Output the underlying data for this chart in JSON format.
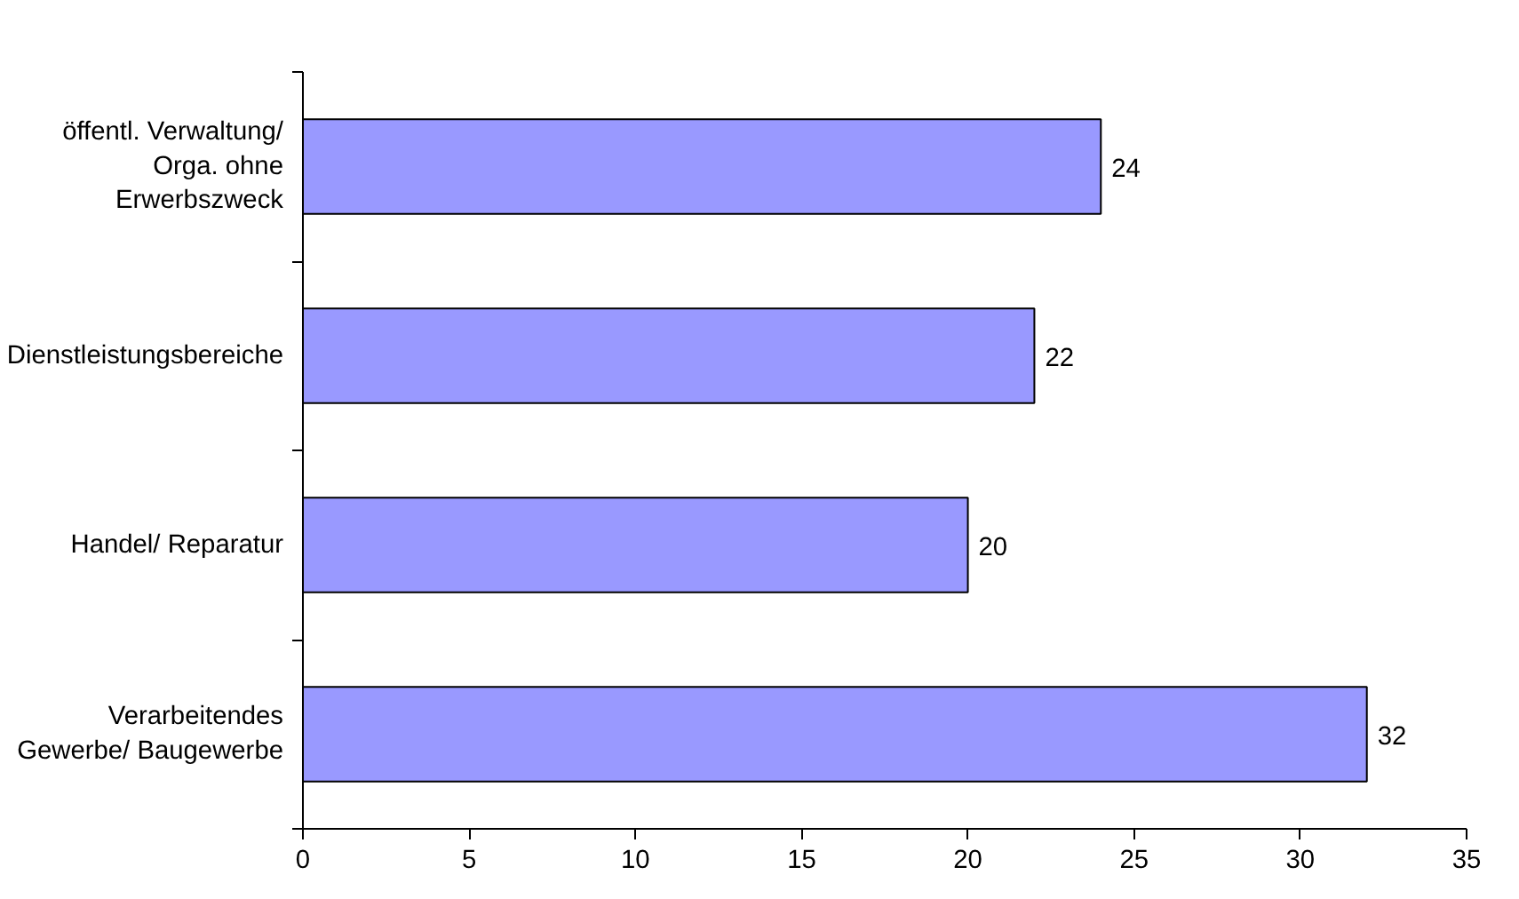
{
  "chart_data": {
    "type": "bar",
    "orientation": "horizontal",
    "categories": [
      "öffentl. Verwaltung/ Orga. ohne Erwerbszweck",
      "Dienstleistungsbereiche",
      "Handel/ Reparatur",
      "Verarbeitendes Gewerbe/ Baugewerbe"
    ],
    "values": [
      24,
      22,
      20,
      32
    ],
    "color": "#9999ff",
    "xlim": [
      0,
      35
    ],
    "xticks": [
      0,
      5,
      10,
      15,
      20,
      25,
      30,
      35
    ],
    "grid": false,
    "data_labels": true
  }
}
